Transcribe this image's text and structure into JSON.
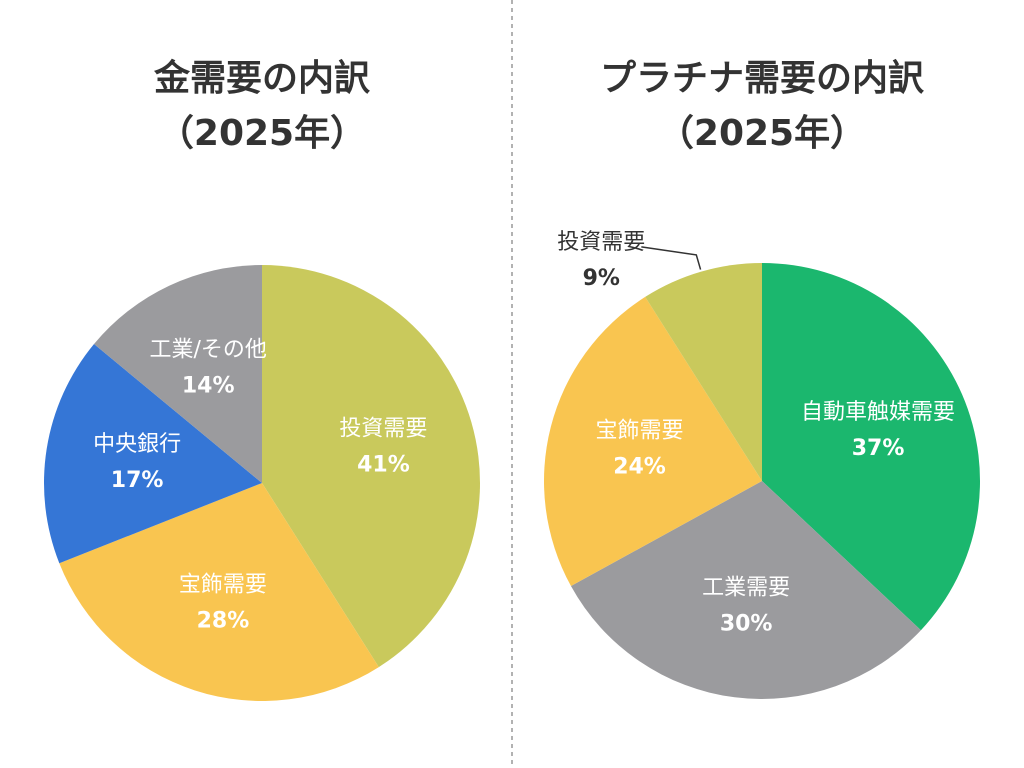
{
  "chart_data": [
    {
      "type": "pie",
      "title": "金需要の内訳",
      "subtitle": "（2025年）",
      "categories": [
        "投資需要",
        "宝飾需要",
        "中央銀行",
        "工業/その他"
      ],
      "values": [
        41,
        28,
        17,
        14
      ],
      "value_labels": [
        "41%",
        "28%",
        "17%",
        "14%"
      ],
      "colors": [
        "#c9c95c",
        "#f9c550",
        "#3576d6",
        "#9b9b9e"
      ]
    },
    {
      "type": "pie",
      "title": "プラチナ需要の内訳",
      "subtitle": "（2025年）",
      "categories": [
        "自動車触媒需要",
        "工業需要",
        "宝飾需要",
        "投資需要"
      ],
      "values": [
        37,
        30,
        24,
        9
      ],
      "value_labels": [
        "37%",
        "30%",
        "24%",
        "9%"
      ],
      "colors": [
        "#1bb76e",
        "#9b9b9e",
        "#f9c550",
        "#c9c95c"
      ]
    }
  ]
}
